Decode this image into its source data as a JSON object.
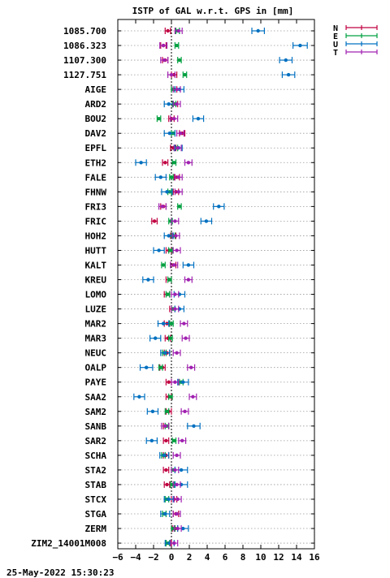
{
  "chart_data": {
    "type": "scatter",
    "title": "ISTP of GAL w.r.t. GPS in [mm]",
    "xlabel": "",
    "ylabel": "",
    "xlim": [
      -6,
      16
    ],
    "xticks": [
      -6,
      -4,
      -2,
      0,
      2,
      4,
      6,
      8,
      10,
      12,
      14,
      16
    ],
    "grid": "horizontal dotted",
    "zero_line": "dashed vertical at 0",
    "legend": "top-right outside",
    "timestamp": "25-May-2022 15:30:23",
    "categories": [
      "1085.700",
      "1086.323",
      "1107.300",
      "1127.751",
      "AIGE",
      "ARD2",
      "BOU2",
      "DAV2",
      "EPFL",
      "ETH2",
      "FALE",
      "FHNW",
      "FRI3",
      "FRIC",
      "HOH2",
      "HUTT",
      "KALT",
      "KREU",
      "LOMO",
      "LUZE",
      "MAR2",
      "MAR3",
      "NEUC",
      "OALP",
      "PAYE",
      "SAA2",
      "SAM2",
      "SANB",
      "SAR2",
      "SCHA",
      "STA2",
      "STAB",
      "STCX",
      "STGA",
      "ZERM",
      "ZIM2_14001M008"
    ],
    "series": [
      {
        "name": "N",
        "color": "#c00040",
        "values": [
          -0.4,
          -0.9,
          -0.7,
          0.3,
          0.3,
          0.4,
          0.0,
          1.2,
          0.2,
          -0.7,
          0.6,
          0.5,
          -0.9,
          -1.9,
          0.2,
          -0.3,
          0.2,
          -0.3,
          -0.5,
          0.1,
          -0.5,
          -0.4,
          -0.5,
          -1.0,
          -0.3,
          -0.3,
          -0.3,
          -0.6,
          -0.6,
          -0.6,
          -0.6,
          -0.5,
          0.3,
          0.5,
          0.4,
          -0.3
        ],
        "err": [
          0.3,
          0.3,
          0.3,
          0.3,
          0.3,
          0.3,
          0.3,
          0.3,
          0.3,
          0.3,
          0.3,
          0.3,
          0.3,
          0.3,
          0.3,
          0.3,
          0.3,
          0.3,
          0.3,
          0.3,
          0.3,
          0.3,
          0.3,
          0.3,
          0.3,
          0.3,
          0.3,
          0.3,
          0.3,
          0.3,
          0.3,
          0.3,
          0.3,
          0.3,
          0.3,
          0.3
        ]
      },
      {
        "name": "E",
        "color": "#00a040",
        "values": [
          0.7,
          0.6,
          0.9,
          1.5,
          0.2,
          0.3,
          -1.4,
          0.2,
          0.5,
          0.3,
          0.0,
          -0.2,
          0.9,
          -0.1,
          0.2,
          -0.1,
          -0.9,
          -0.2,
          -0.4,
          0.2,
          0.0,
          -0.1,
          -0.8,
          -1.2,
          1.1,
          -0.1,
          -0.5,
          -0.5,
          0.3,
          -0.9,
          0.2,
          0.1,
          -0.5,
          -0.8,
          0.2,
          -0.4
        ],
        "err": [
          0.2,
          0.2,
          0.2,
          0.2,
          0.2,
          0.2,
          0.2,
          0.2,
          0.2,
          0.2,
          0.2,
          0.2,
          0.2,
          0.2,
          0.2,
          0.2,
          0.2,
          0.2,
          0.2,
          0.2,
          0.2,
          0.2,
          0.2,
          0.2,
          0.2,
          0.2,
          0.2,
          0.2,
          0.2,
          0.2,
          0.2,
          0.2,
          0.2,
          0.2,
          0.2,
          0.2
        ]
      },
      {
        "name": "U",
        "color": "#0070c0",
        "values": [
          9.7,
          14.4,
          12.8,
          13.1,
          0.9,
          -0.3,
          3.0,
          -0.2,
          0.8,
          -3.4,
          -1.2,
          -0.5,
          5.3,
          3.9,
          -0.3,
          -1.4,
          1.9,
          -2.6,
          0.9,
          0.9,
          -0.9,
          -1.8,
          -0.7,
          -2.8,
          1.3,
          -3.6,
          -2.1,
          2.5,
          -2.2,
          -0.8,
          1.1,
          1.1,
          -0.3,
          -0.7,
          1.3,
          -0.2
        ],
        "err": [
          0.7,
          0.8,
          0.7,
          0.7,
          0.5,
          0.5,
          0.6,
          0.6,
          0.4,
          0.6,
          0.6,
          0.6,
          0.6,
          0.6,
          0.5,
          0.6,
          0.6,
          0.6,
          0.6,
          0.5,
          0.6,
          0.6,
          0.5,
          0.7,
          0.6,
          0.6,
          0.6,
          0.7,
          0.6,
          0.5,
          0.7,
          0.7,
          0.5,
          0.5,
          0.6,
          0.5
        ]
      },
      {
        "name": "T",
        "color": "#a020b0",
        "values": [
          0.8,
          -0.9,
          -0.8,
          0.0,
          0.6,
          0.6,
          0.3,
          1.0,
          0.7,
          1.9,
          0.8,
          0.8,
          -1.0,
          0.4,
          0.5,
          0.6,
          0.3,
          1.9,
          0.4,
          0.4,
          1.4,
          1.6,
          0.6,
          2.2,
          0.4,
          2.4,
          1.5,
          -0.7,
          1.2,
          0.6,
          0.4,
          0.6,
          0.7,
          0.6,
          0.7,
          0.3
        ],
        "err": [
          0.4,
          0.4,
          0.4,
          0.4,
          0.4,
          0.4,
          0.4,
          0.4,
          0.4,
          0.4,
          0.4,
          0.4,
          0.4,
          0.4,
          0.4,
          0.4,
          0.4,
          0.4,
          0.4,
          0.4,
          0.4,
          0.4,
          0.4,
          0.4,
          0.4,
          0.4,
          0.4,
          0.4,
          0.4,
          0.4,
          0.4,
          0.4,
          0.4,
          0.4,
          0.4,
          0.4
        ]
      }
    ]
  }
}
